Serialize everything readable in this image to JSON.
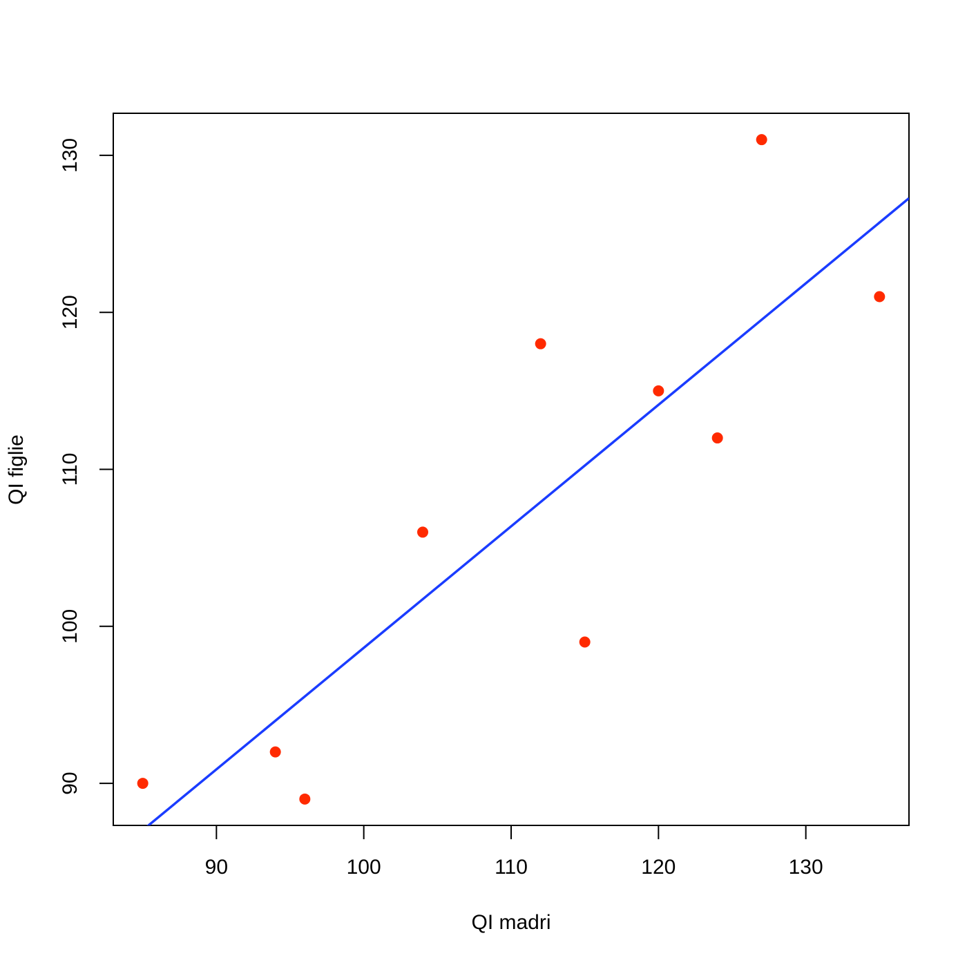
{
  "chart_data": {
    "type": "scatter",
    "x_label": "QI madri",
    "y_label": "QI figlie",
    "series": [
      {
        "x": [
          85,
          94,
          96,
          104,
          112,
          115,
          120,
          124,
          127,
          135
        ],
        "values": [
          90,
          92,
          89,
          106,
          118,
          99,
          115,
          112,
          131,
          121
        ],
        "color": "#ff2a00"
      }
    ],
    "regression": {
      "intercept": 21.23,
      "slope": 0.774,
      "color": "#1a3cff"
    },
    "xlim": [
      83,
      137
    ],
    "ylim": [
      87.32,
      132.68
    ],
    "xticks": [
      90,
      100,
      110,
      120,
      130
    ],
    "yticks": [
      90,
      100,
      110,
      120,
      130
    ]
  }
}
